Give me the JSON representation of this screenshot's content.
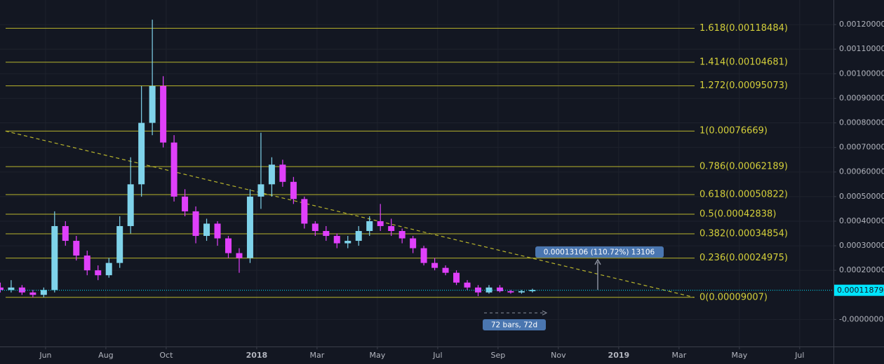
{
  "chart_data": {
    "type": "candlestick",
    "xlim": [
      4.49,
      32.12
    ],
    "ylim": [
      -0.00011,
      0.0013
    ],
    "grid": true,
    "up_color": "#7fd3ea",
    "down_color": "#e040fb",
    "xticks": [
      {
        "value": 6,
        "label": "Jun"
      },
      {
        "value": 8,
        "label": "Aug"
      },
      {
        "value": 10,
        "label": "Oct"
      },
      {
        "value": 13,
        "label": "2018"
      },
      {
        "value": 15,
        "label": "Mar"
      },
      {
        "value": 17,
        "label": "May"
      },
      {
        "value": 19,
        "label": "Jul"
      },
      {
        "value": 21,
        "label": "Sep"
      },
      {
        "value": 23,
        "label": "Nov"
      },
      {
        "value": 25,
        "label": "2019"
      },
      {
        "value": 27,
        "label": "Mar"
      },
      {
        "value": 29,
        "label": "May"
      },
      {
        "value": 31,
        "label": "Jul"
      }
    ],
    "yticks": [
      {
        "value": 0.0012,
        "label": "0.00120000"
      },
      {
        "value": 0.0011,
        "label": "0.00110000"
      },
      {
        "value": 0.001,
        "label": "0.00100000"
      },
      {
        "value": 0.0009,
        "label": "0.00090000"
      },
      {
        "value": 0.0008,
        "label": "0.00080000"
      },
      {
        "value": 0.0007,
        "label": "0.00070000"
      },
      {
        "value": 0.0006,
        "label": "0.00060000"
      },
      {
        "value": 0.0005,
        "label": "0.00050000"
      },
      {
        "value": 0.0004,
        "label": "0.00040000"
      },
      {
        "value": 0.0003,
        "label": "0.00030000"
      },
      {
        "value": 0.0002,
        "label": "0.00020000"
      },
      {
        "value": 0,
        "label": "-0.00000000"
      }
    ],
    "x": [
      4.5,
      4.86,
      5.22,
      5.58,
      5.94,
      6.3,
      6.66,
      7.02,
      7.38,
      7.74,
      8.1,
      8.46,
      8.82,
      9.18,
      9.54,
      9.9,
      10.26,
      10.62,
      10.98,
      11.34,
      11.7,
      12.06,
      12.42,
      12.78,
      13.14,
      13.5,
      13.86,
      14.22,
      14.58,
      14.94,
      15.3,
      15.66,
      16.02,
      16.38,
      16.74,
      17.1,
      17.46,
      17.82,
      18.18,
      18.54,
      18.9,
      19.26,
      19.62,
      19.98,
      20.34,
      20.7,
      21.06,
      21.42,
      21.78,
      22.14
    ],
    "open": [
      0.00013,
      0.00012,
      0.00013,
      0.00011,
      0.0001,
      0.00012,
      0.00038,
      0.00032,
      0.00026,
      0.0002,
      0.00018,
      0.00023,
      0.00038,
      0.00055,
      0.0008,
      0.00095,
      0.00072,
      0.0005,
      0.00044,
      0.00034,
      0.00039,
      0.00033,
      0.00027,
      0.00025,
      0.0005,
      0.00055,
      0.00063,
      0.00056,
      0.00049,
      0.00039,
      0.00036,
      0.00034,
      0.00031,
      0.00032,
      0.00036,
      0.0004,
      0.00038,
      0.00036,
      0.00033,
      0.00029,
      0.00023,
      0.00021,
      0.00019,
      0.00015,
      0.00013,
      0.00011,
      0.00013,
      0.000115,
      0.00011,
      0.000115
    ],
    "high": [
      0.00015,
      0.00016,
      0.00014,
      0.00012,
      0.00013,
      0.00044,
      0.0004,
      0.00034,
      0.00028,
      0.00022,
      0.00025,
      0.00042,
      0.00066,
      0.00095,
      0.00122,
      0.00099,
      0.00075,
      0.00053,
      0.00046,
      0.00041,
      0.0004,
      0.00034,
      0.00029,
      0.00053,
      0.00076,
      0.00066,
      0.00065,
      0.00058,
      0.0005,
      0.0004,
      0.00038,
      0.00035,
      0.00034,
      0.00038,
      0.00042,
      0.00047,
      0.00041,
      0.00037,
      0.00034,
      0.0003,
      0.00025,
      0.00022,
      0.0002,
      0.00016,
      0.00014,
      0.00014,
      0.00014,
      0.00012,
      0.00012,
      0.000125
    ],
    "low": [
      0.00011,
      0.00011,
      0.0001,
      9e-05,
      9e-05,
      0.00011,
      0.0003,
      0.00024,
      0.00018,
      0.00016,
      0.00017,
      0.00021,
      0.00035,
      0.0005,
      0.00075,
      0.0007,
      0.00048,
      0.00042,
      0.00031,
      0.00032,
      0.0003,
      0.00025,
      0.00019,
      0.00023,
      0.00045,
      0.0005,
      0.00054,
      0.00047,
      0.00037,
      0.00034,
      0.00032,
      0.00029,
      0.00029,
      0.0003,
      0.00034,
      0.00036,
      0.00034,
      0.00031,
      0.00027,
      0.00022,
      0.0002,
      0.00018,
      0.00014,
      0.00012,
      9.5e-05,
      0.000105,
      0.00011,
      0.000105,
      0.000105,
      0.00011
    ],
    "close": [
      0.00012,
      0.00013,
      0.00011,
      0.0001,
      0.00012,
      0.00038,
      0.00032,
      0.00026,
      0.0002,
      0.00018,
      0.00023,
      0.00038,
      0.00055,
      0.0008,
      0.00095,
      0.00072,
      0.0005,
      0.00044,
      0.00034,
      0.00039,
      0.00033,
      0.00027,
      0.00025,
      0.0005,
      0.00055,
      0.00063,
      0.00056,
      0.00049,
      0.00039,
      0.00036,
      0.00034,
      0.00031,
      0.00032,
      0.00036,
      0.0004,
      0.00038,
      0.00036,
      0.00033,
      0.00029,
      0.00023,
      0.00021,
      0.00019,
      0.00015,
      0.00013,
      0.00011,
      0.00013,
      0.000115,
      0.00011,
      0.000115,
      0.00012
    ],
    "fib_levels": [
      {
        "label": "1.618(0.00118484)",
        "value": 0.00118484
      },
      {
        "label": "1.414(0.00104681)",
        "value": 0.00104681
      },
      {
        "label": "1.272(0.00095073)",
        "value": 0.00095073
      },
      {
        "label": "1(0.00076669)",
        "value": 0.00076669
      },
      {
        "label": "0.786(0.00062189)",
        "value": 0.00062189
      },
      {
        "label": "0.618(0.00050822)",
        "value": 0.00050822
      },
      {
        "label": "0.5(0.00042838)",
        "value": 0.00042838
      },
      {
        "label": "0.382(0.00034854)",
        "value": 0.00034854
      },
      {
        "label": "0.236(0.00024975)",
        "value": 0.00024975
      },
      {
        "label": "0(0.00009007)",
        "value": 9.007e-05
      }
    ],
    "fib_color": "#b9b52c",
    "trend_line": {
      "x": [
        4.67,
        27.5
      ],
      "y": [
        0.00076669,
        9.007e-05
      ]
    },
    "last_price": {
      "label": "0.00011879",
      "value": 0.00011879
    },
    "annotations": [
      "0.00013106 (110.72%) 13106",
      "72 bars, 72d"
    ]
  }
}
